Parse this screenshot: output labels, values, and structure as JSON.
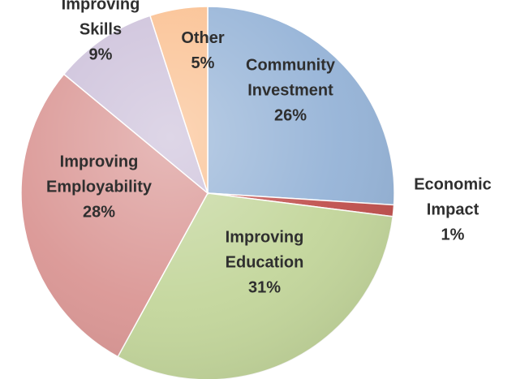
{
  "chart_data": {
    "type": "pie",
    "title": "",
    "slices": [
      {
        "name": "Community Investment",
        "label_lines": [
          "Community",
          "Investment"
        ],
        "value": 26,
        "value_label": "26%",
        "color": "#95b3d7"
      },
      {
        "name": "Economic Impact",
        "label_lines": [
          "Economic",
          "Impact"
        ],
        "value": 1,
        "value_label": "1%",
        "color": "#c0504d"
      },
      {
        "name": "Improving Education",
        "label_lines": [
          "Improving",
          "Education"
        ],
        "value": 31,
        "value_label": "31%",
        "color": "#c3d69b"
      },
      {
        "name": "Improving Employability",
        "label_lines": [
          "Improving",
          "Employability"
        ],
        "value": 28,
        "value_label": "28%",
        "color": "#da9694"
      },
      {
        "name": "Improving Skills",
        "label_lines": [
          "Improving",
          "Skills"
        ],
        "value": 9,
        "value_label": "9%",
        "color": "#ccc0da"
      },
      {
        "name": "Other",
        "label_lines": [
          "Other"
        ],
        "value": 5,
        "value_label": "5%",
        "color": "#fabf8f"
      }
    ],
    "start_angle": "12 o'clock",
    "direction": "clockwise",
    "legend": "none",
    "labels": "on slices"
  }
}
